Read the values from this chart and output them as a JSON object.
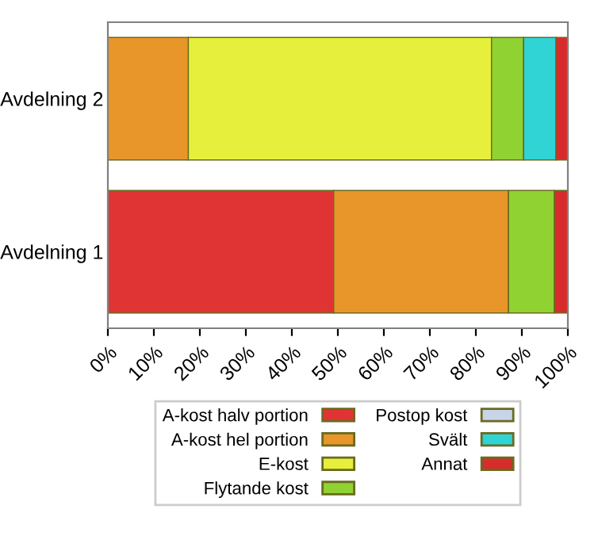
{
  "chart_data": {
    "type": "bar",
    "orientation": "horizontal",
    "stacked": true,
    "categories": [
      "Avdelning 2",
      "Avdelning 1"
    ],
    "series": [
      {
        "name": "A-kost halv portion",
        "color": "#e03434",
        "values": [
          0,
          49.1
        ]
      },
      {
        "name": "A-kost hel portion",
        "color": "#e8962a",
        "values": [
          17.5,
          38
        ]
      },
      {
        "name": "E-kost",
        "color": "#e6f03c",
        "values": [
          65.9,
          0
        ]
      },
      {
        "name": "Flytande kost",
        "color": "#90d232",
        "values": [
          7,
          10
        ]
      },
      {
        "name": "Postop kost",
        "color": "#c8d4e8",
        "values": [
          0,
          0
        ]
      },
      {
        "name": "Svält",
        "color": "#30d4d4",
        "values": [
          7,
          0
        ]
      },
      {
        "name": "Annat",
        "color": "#d82c2c",
        "values": [
          2.6,
          2.9
        ]
      }
    ],
    "xlim": [
      0,
      100
    ],
    "xticks": [
      {
        "value": 0,
        "label": "0%"
      },
      {
        "value": 10,
        "label": "10%"
      },
      {
        "value": 20,
        "label": "20%"
      },
      {
        "value": 30,
        "label": "30%"
      },
      {
        "value": 40,
        "label": "40%"
      },
      {
        "value": 50,
        "label": "50%"
      },
      {
        "value": 60,
        "label": "60%"
      },
      {
        "value": 70,
        "label": "70%"
      },
      {
        "value": 80,
        "label": "80%"
      },
      {
        "value": 90,
        "label": "90%"
      },
      {
        "value": 100,
        "label": "100%"
      }
    ],
    "legend": "bottom",
    "grid": false
  }
}
